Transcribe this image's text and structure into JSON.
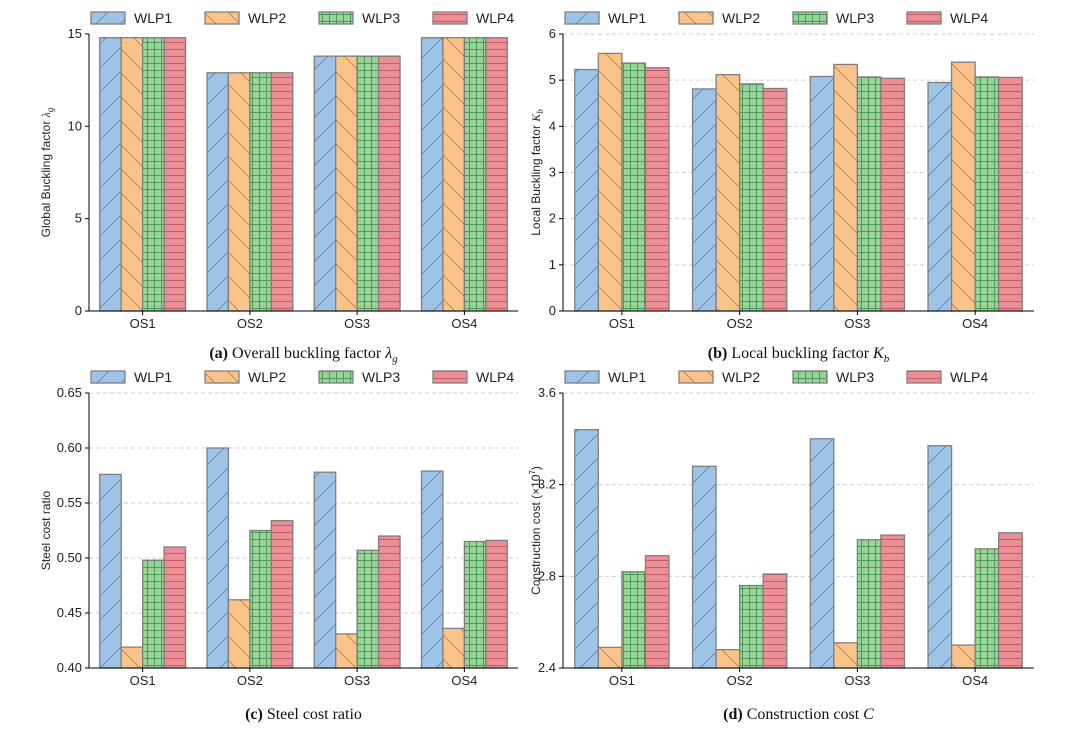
{
  "figure": {
    "series_names": [
      "WLP1",
      "WLP2",
      "WLP3",
      "WLP4"
    ],
    "series_colors": [
      "#9dc3e6",
      "#f9c38a",
      "#99d39a",
      "#eb8f96"
    ],
    "hatch_colors": [
      "#6f8fb0",
      "#c08a50",
      "#4a9b55",
      "#c85a64"
    ]
  },
  "chart_data": [
    {
      "type": "bar",
      "title": "",
      "caption_tag": "(a)",
      "caption_text": "Overall buckling factor",
      "caption_math": "λ",
      "caption_sub": "g",
      "xlabel": "",
      "ylabel": "Global Buckling factor",
      "ylabel_math": "λ",
      "ylabel_sub": "g",
      "categories": [
        "OS1",
        "OS2",
        "OS3",
        "OS4"
      ],
      "ylim": [
        0,
        15
      ],
      "yticks": [
        0,
        5,
        10,
        15
      ],
      "ytick_labels": [
        "0",
        "5",
        "10",
        "15"
      ],
      "grid": false,
      "legend": "top",
      "series": [
        {
          "name": "WLP1",
          "values": [
            14.8,
            12.9,
            13.8,
            14.8
          ]
        },
        {
          "name": "WLP2",
          "values": [
            14.8,
            12.9,
            13.8,
            14.8
          ]
        },
        {
          "name": "WLP3",
          "values": [
            14.8,
            12.9,
            13.8,
            14.8
          ]
        },
        {
          "name": "WLP4",
          "values": [
            14.8,
            12.9,
            13.8,
            14.8
          ]
        }
      ]
    },
    {
      "type": "bar",
      "title": "",
      "caption_tag": "(b)",
      "caption_text": "Local buckling factor",
      "caption_math": "K",
      "caption_sub": "b",
      "xlabel": "",
      "ylabel": "Local Buckling factor",
      "ylabel_math": "K",
      "ylabel_sub": "b",
      "categories": [
        "OS1",
        "OS2",
        "OS3",
        "OS4"
      ],
      "ylim": [
        0,
        6
      ],
      "yticks": [
        0,
        1,
        2,
        3,
        4,
        5,
        6
      ],
      "ytick_labels": [
        "0",
        "1",
        "2",
        "3",
        "4",
        "5",
        "6"
      ],
      "grid": true,
      "legend": "top",
      "series": [
        {
          "name": "WLP1",
          "values": [
            5.23,
            4.81,
            5.08,
            4.95
          ]
        },
        {
          "name": "WLP2",
          "values": [
            5.58,
            5.12,
            5.34,
            5.39
          ]
        },
        {
          "name": "WLP3",
          "values": [
            5.37,
            4.92,
            5.07,
            5.07
          ]
        },
        {
          "name": "WLP4",
          "values": [
            5.27,
            4.82,
            5.04,
            5.06
          ]
        }
      ]
    },
    {
      "type": "bar",
      "title": "",
      "caption_tag": "(c)",
      "caption_text": "Steel cost ratio",
      "caption_math": "",
      "caption_sub": "",
      "xlabel": "",
      "ylabel": "Steel cost ratio",
      "ylabel_math": "",
      "ylabel_sub": "",
      "categories": [
        "OS1",
        "OS2",
        "OS3",
        "OS4"
      ],
      "ylim": [
        0.4,
        0.65
      ],
      "yticks": [
        0.4,
        0.45,
        0.5,
        0.55,
        0.6,
        0.65
      ],
      "ytick_labels": [
        "0.40",
        "0.45",
        "0.50",
        "0.55",
        "0.60",
        "0.65"
      ],
      "grid": true,
      "legend": "top",
      "series": [
        {
          "name": "WLP1",
          "values": [
            0.576,
            0.6,
            0.578,
            0.579
          ]
        },
        {
          "name": "WLP2",
          "values": [
            0.419,
            0.462,
            0.431,
            0.436
          ]
        },
        {
          "name": "WLP3",
          "values": [
            0.498,
            0.525,
            0.507,
            0.515
          ]
        },
        {
          "name": "WLP4",
          "values": [
            0.51,
            0.534,
            0.52,
            0.516
          ]
        }
      ]
    },
    {
      "type": "bar",
      "title": "",
      "caption_tag": "(d)",
      "caption_text": "Construction cost",
      "caption_math": "C",
      "caption_sub": "",
      "xlabel": "",
      "ylabel": "Construction cost (×10",
      "ylabel_sup": "7",
      "ylabel_tail": ")",
      "ylabel_math": "",
      "ylabel_sub": "",
      "categories": [
        "OS1",
        "OS2",
        "OS3",
        "OS4"
      ],
      "ylim": [
        2.4,
        3.6
      ],
      "yticks": [
        2.4,
        2.8,
        3.2,
        3.6
      ],
      "ytick_labels": [
        "2.4",
        "2.8",
        "3.2",
        "3.6"
      ],
      "grid": true,
      "legend": "top",
      "series": [
        {
          "name": "WLP1",
          "values": [
            3.44,
            3.28,
            3.4,
            3.37
          ]
        },
        {
          "name": "WLP2",
          "values": [
            2.49,
            2.48,
            2.51,
            2.5
          ]
        },
        {
          "name": "WLP3",
          "values": [
            2.82,
            2.76,
            2.96,
            2.92
          ]
        },
        {
          "name": "WLP4",
          "values": [
            2.89,
            2.81,
            2.98,
            2.99
          ]
        }
      ]
    }
  ]
}
